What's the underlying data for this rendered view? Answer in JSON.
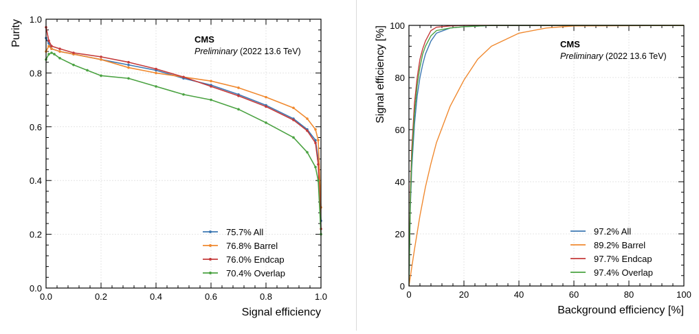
{
  "chart_data": [
    {
      "type": "line",
      "xlabel": "Signal efficiency",
      "ylabel": "Purity",
      "xlim": [
        0.0,
        1.0
      ],
      "ylim": [
        0.0,
        1.0
      ],
      "xticks": [
        "0.0",
        "0.2",
        "0.4",
        "0.6",
        "0.8",
        "1.0"
      ],
      "yticks": [
        "0.0",
        "0.2",
        "0.4",
        "0.6",
        "0.8",
        "1.0"
      ],
      "grid": true,
      "legend_position": "bottom-right",
      "experiment_label": "CMS",
      "experiment_sublabel_italic": "Preliminary",
      "experiment_sublabel": "(2022 13.6 TeV)",
      "series": [
        {
          "name": "75.7% All",
          "color": "#3c77b2",
          "marker": true,
          "x": [
            0.0,
            0.01,
            0.02,
            0.05,
            0.1,
            0.2,
            0.3,
            0.4,
            0.5,
            0.6,
            0.7,
            0.8,
            0.9,
            0.95,
            0.98,
            0.99,
            1.0
          ],
          "y": [
            0.93,
            0.91,
            0.89,
            0.88,
            0.87,
            0.85,
            0.83,
            0.81,
            0.78,
            0.755,
            0.72,
            0.68,
            0.63,
            0.59,
            0.55,
            0.48,
            0.25
          ]
        },
        {
          "name": "76.8% Barrel",
          "color": "#f0892f",
          "marker": true,
          "x": [
            0.0,
            0.01,
            0.02,
            0.05,
            0.1,
            0.2,
            0.3,
            0.4,
            0.5,
            0.6,
            0.7,
            0.8,
            0.9,
            0.95,
            0.98,
            0.99,
            1.0
          ],
          "y": [
            0.88,
            0.9,
            0.89,
            0.88,
            0.87,
            0.85,
            0.82,
            0.8,
            0.785,
            0.77,
            0.745,
            0.71,
            0.67,
            0.63,
            0.59,
            0.55,
            0.3
          ]
        },
        {
          "name": "76.0% Endcap",
          "color": "#c43a3a",
          "marker": true,
          "x": [
            0.0,
            0.01,
            0.02,
            0.05,
            0.1,
            0.2,
            0.3,
            0.4,
            0.5,
            0.6,
            0.7,
            0.8,
            0.9,
            0.95,
            0.98,
            0.99,
            1.0
          ],
          "y": [
            0.97,
            0.92,
            0.9,
            0.89,
            0.875,
            0.86,
            0.84,
            0.815,
            0.785,
            0.75,
            0.715,
            0.675,
            0.625,
            0.585,
            0.54,
            0.46,
            0.22
          ]
        },
        {
          "name": "70.4% Overlap",
          "color": "#4aa241",
          "marker": true,
          "x": [
            0.0,
            0.01,
            0.02,
            0.03,
            0.05,
            0.1,
            0.15,
            0.2,
            0.3,
            0.4,
            0.5,
            0.6,
            0.7,
            0.8,
            0.9,
            0.95,
            0.98,
            0.99,
            1.0
          ],
          "y": [
            0.85,
            0.87,
            0.875,
            0.87,
            0.855,
            0.83,
            0.81,
            0.79,
            0.78,
            0.75,
            0.72,
            0.7,
            0.665,
            0.615,
            0.56,
            0.505,
            0.45,
            0.4,
            0.2
          ]
        }
      ]
    },
    {
      "type": "line",
      "xlabel": "Background efficiency [%]",
      "ylabel": "Signal efficiency [%]",
      "xlim": [
        0,
        100
      ],
      "ylim": [
        0,
        100
      ],
      "xticks": [
        "0",
        "20",
        "40",
        "60",
        "80",
        "100"
      ],
      "yticks": [
        "0",
        "20",
        "40",
        "60",
        "80",
        "100"
      ],
      "grid": true,
      "legend_position": "bottom-right",
      "experiment_label": "CMS",
      "experiment_sublabel_italic": "Preliminary",
      "experiment_sublabel": "(2022 13.6 TeV)",
      "series": [
        {
          "name": "97.2% All",
          "color": "#3c77b2",
          "marker": false,
          "x": [
            0,
            0.5,
            1,
            2,
            3,
            4,
            5,
            6,
            8,
            10,
            15,
            20,
            30,
            100
          ],
          "y": [
            0,
            30,
            45,
            62,
            73,
            80,
            85,
            89,
            94,
            97,
            99,
            99.5,
            100,
            100
          ]
        },
        {
          "name": "89.2% Barrel",
          "color": "#f0892f",
          "marker": false,
          "x": [
            0,
            1,
            2,
            4,
            6,
            8,
            10,
            15,
            20,
            25,
            30,
            40,
            50,
            60,
            100
          ],
          "y": [
            0,
            7,
            14,
            27,
            38,
            47,
            55,
            69,
            79,
            87,
            92,
            97,
            99,
            99.8,
            100
          ]
        },
        {
          "name": "97.7% Endcap",
          "color": "#c43a3a",
          "marker": false,
          "x": [
            0,
            0.5,
            1,
            2,
            3,
            4,
            5,
            6,
            8,
            10,
            15,
            20,
            100
          ],
          "y": [
            0,
            35,
            52,
            70,
            80,
            87,
            91,
            94,
            98,
            99.3,
            99.8,
            100,
            100
          ]
        },
        {
          "name": "97.4% Overlap",
          "color": "#4aa241",
          "marker": false,
          "x": [
            0,
            0.5,
            1,
            2,
            3,
            4,
            5,
            6,
            8,
            10,
            15,
            20,
            30,
            100
          ],
          "y": [
            0,
            32,
            48,
            66,
            77,
            84,
            89,
            92,
            96,
            98,
            99,
            99.5,
            100,
            100
          ]
        }
      ]
    }
  ]
}
